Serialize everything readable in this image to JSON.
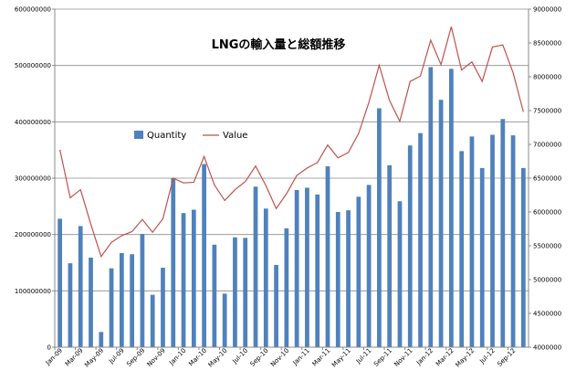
{
  "chart_data": {
    "type": "bar-line-combo",
    "title": "LNGの輸入量と総額推移",
    "legend_position": "center-left",
    "grid": true,
    "x_tick_labels": [
      "Jan-09",
      "Mar-09",
      "May-09",
      "Jul-09",
      "Sep-09",
      "Nov-09",
      "Jan-10",
      "Mar-10",
      "May-10",
      "Jul-10",
      "Sep-10",
      "Nov-10",
      "Jan-11",
      "Mar-11",
      "May-11",
      "Jul-11",
      "Sep-11",
      "Nov-11",
      "Jan-12",
      "Mar-12",
      "May-12",
      "Jul-12",
      "Sep-12"
    ],
    "categories": [
      "Jan-09",
      "Feb-09",
      "Mar-09",
      "Apr-09",
      "May-09",
      "Jun-09",
      "Jul-09",
      "Aug-09",
      "Sep-09",
      "Oct-09",
      "Nov-09",
      "Dec-09",
      "Jan-10",
      "Feb-10",
      "Mar-10",
      "Apr-10",
      "May-10",
      "Jun-10",
      "Jul-10",
      "Aug-10",
      "Sep-10",
      "Oct-10",
      "Nov-10",
      "Dec-10",
      "Jan-11",
      "Feb-11",
      "Mar-11",
      "Apr-11",
      "May-11",
      "Jun-11",
      "Jul-11",
      "Aug-11",
      "Sep-11",
      "Oct-11",
      "Nov-11",
      "Dec-11",
      "Jan-12",
      "Feb-12",
      "Mar-12",
      "Apr-12",
      "May-12",
      "Jun-12",
      "Jul-12",
      "Aug-12",
      "Sep-12",
      "Oct-12"
    ],
    "y_left": {
      "range": [
        0,
        600000000
      ],
      "ticks": [
        0,
        100000000,
        200000000,
        300000000,
        400000000,
        500000000,
        600000000
      ],
      "tick_labels": [
        "0",
        "100000000",
        "200000000",
        "300000000",
        "400000000",
        "500000000",
        "600000000"
      ]
    },
    "y_right": {
      "range": [
        4000000,
        9000000
      ],
      "ticks": [
        4000000,
        4500000,
        5000000,
        5500000,
        6000000,
        6500000,
        7000000,
        7500000,
        8000000,
        8500000,
        9000000
      ],
      "tick_labels": [
        "4000000",
        "4500000",
        "5000000",
        "5500000",
        "6000000",
        "6500000",
        "7000000",
        "7500000",
        "8000000",
        "8500000",
        "9000000"
      ]
    },
    "series": [
      {
        "name": "Quantity",
        "type": "bar",
        "axis": "left",
        "color": "#4f81bd",
        "values": [
          228000000,
          149000000,
          215000000,
          159000000,
          27000000,
          140000000,
          167000000,
          165000000,
          201000000,
          93000000,
          141000000,
          300000000,
          238000000,
          244000000,
          325000000,
          182000000,
          95000000,
          195000000,
          194000000,
          285000000,
          246000000,
          146000000,
          211000000,
          279000000,
          283000000,
          271000000,
          321000000,
          240000000,
          243000000,
          267000000,
          288000000,
          424000000,
          323000000,
          259000000,
          358000000,
          380000000,
          497000000,
          439000000,
          494000000,
          348000000,
          374000000,
          318000000,
          377000000,
          405000000,
          376000000,
          318000000
        ]
      },
      {
        "name": "Value",
        "type": "line",
        "axis": "right",
        "color": "#c0504d",
        "values": [
          6920000,
          6210000,
          6330000,
          5820000,
          5340000,
          5550000,
          5650000,
          5710000,
          5890000,
          5700000,
          5900000,
          6500000,
          6430000,
          6440000,
          6820000,
          6400000,
          6170000,
          6330000,
          6450000,
          6680000,
          6390000,
          6050000,
          6270000,
          6540000,
          6650000,
          6730000,
          6990000,
          6800000,
          6880000,
          7160000,
          7620000,
          8170000,
          7650000,
          7340000,
          7930000,
          8010000,
          8540000,
          8180000,
          8740000,
          8100000,
          8220000,
          7930000,
          8440000,
          8470000,
          8060000,
          7480000
        ]
      }
    ]
  }
}
